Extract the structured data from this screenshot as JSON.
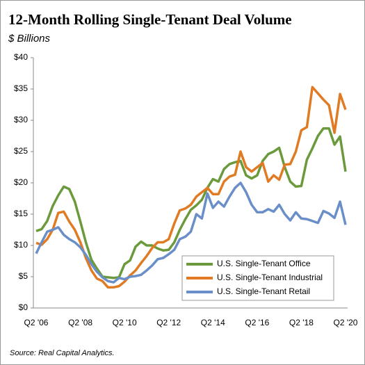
{
  "chart_data": {
    "type": "line",
    "title": "12-Month Rolling Single-Tenant Deal Volume",
    "subtitle": "$ Billions",
    "source": "Source: Real Capital Analytics.",
    "categories": [
      "Q2 '06",
      null,
      null,
      null,
      null,
      null,
      null,
      null,
      "Q2 '08",
      null,
      null,
      null,
      null,
      null,
      null,
      null,
      "Q2 '10",
      null,
      null,
      null,
      null,
      null,
      null,
      null,
      "Q2 '12",
      null,
      null,
      null,
      null,
      null,
      null,
      null,
      "Q2 '14",
      null,
      null,
      null,
      null,
      null,
      null,
      null,
      "Q2 '16",
      null,
      null,
      null,
      null,
      null,
      null,
      null,
      "Q2 '18",
      null,
      null,
      null,
      null,
      null,
      null,
      null,
      "Q2 '20"
    ],
    "series": [
      {
        "name": "U.S. Single-Tenant Office",
        "color": "#6b9a3c",
        "values": [
          12.3,
          12.6,
          13.9,
          16.3,
          18,
          19.4,
          19,
          17,
          13.8,
          10.5,
          7.7,
          6.3,
          5,
          4.9,
          4.8,
          4.9,
          7,
          7.6,
          9.8,
          10.6,
          10,
          10,
          9.5,
          9.2,
          9.3,
          10.5,
          12.5,
          14.2,
          15.7,
          16.4,
          17.3,
          19.2,
          20.6,
          20.2,
          22.2,
          23,
          23.3,
          23.5,
          21.2,
          20.7,
          21.2,
          23.5,
          24.6,
          25,
          25.6,
          22.5,
          20.2,
          19.4,
          19.5,
          23.7,
          25.5,
          27.5,
          28.7,
          28.7,
          26.1,
          27.4,
          21.8
        ]
      },
      {
        "name": "U.S. Single-Tenant Industrial",
        "color": "#e07b24",
        "values": [
          10.4,
          10.1,
          11,
          12.5,
          15.2,
          15.4,
          13.8,
          12.5,
          10.5,
          8,
          6,
          4.7,
          4.3,
          3.3,
          3.3,
          3.5,
          4.2,
          5.2,
          6,
          7.2,
          8.3,
          9.6,
          10.5,
          10.5,
          11,
          13.5,
          15.6,
          15.9,
          16.5,
          17.8,
          18.5,
          19.2,
          18.2,
          18.2,
          20.2,
          21,
          21.3,
          25,
          22.5,
          21.8,
          22.5,
          23.2,
          20.2,
          21.2,
          20.5,
          22.9,
          23,
          25,
          28.4,
          28.9,
          35.3,
          34.3,
          33.3,
          32.4,
          28,
          34.2,
          31.7
        ]
      },
      {
        "name": "U.S. Single-Tenant Retail",
        "color": "#6a8fc8",
        "values": [
          8.7,
          10.5,
          12.2,
          12.5,
          12.9,
          11.7,
          11,
          10.5,
          9.7,
          8.5,
          7,
          5.8,
          4.9,
          4.3,
          4.1,
          4.8,
          4.6,
          5,
          5.1,
          5.3,
          6,
          6.8,
          7.8,
          8,
          8.6,
          9.3,
          11,
          11.4,
          12.2,
          15,
          14.3,
          18.3,
          16,
          17,
          16.2,
          17.8,
          19.2,
          20,
          18.5,
          16.5,
          15.3,
          15.3,
          15.8,
          15.4,
          16.5,
          15,
          14,
          15.3,
          14.3,
          14.2,
          13.9,
          13.6,
          15.5,
          15.1,
          14.4,
          17,
          13.3
        ]
      }
    ],
    "ylim": [
      0,
      40
    ],
    "yticks": [
      {
        "value": 0,
        "label": "$0"
      },
      {
        "value": 5,
        "label": "$5"
      },
      {
        "value": 10,
        "label": "$10"
      },
      {
        "value": 15,
        "label": "$15"
      },
      {
        "value": 20,
        "label": "$20"
      },
      {
        "value": 25,
        "label": "$25"
      },
      {
        "value": 30,
        "label": "$30"
      },
      {
        "value": 35,
        "label": "$35"
      },
      {
        "value": 40,
        "label": "$40"
      }
    ],
    "legend": "lower right"
  }
}
